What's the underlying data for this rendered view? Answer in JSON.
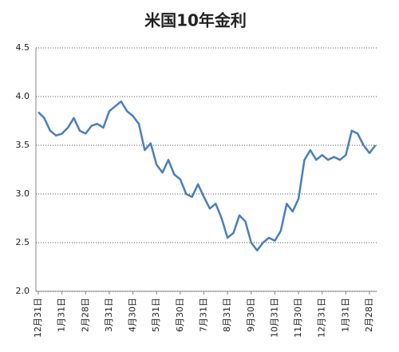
{
  "chart_data": {
    "type": "line",
    "title": "米国10年金利",
    "categories": [
      "12月31日",
      null,
      null,
      null,
      "1月31日",
      null,
      null,
      null,
      "2月28日",
      null,
      null,
      null,
      "3月31日",
      null,
      null,
      null,
      "4月30日",
      null,
      null,
      null,
      "5月31日",
      null,
      null,
      null,
      "6月30日",
      null,
      null,
      null,
      "7月31日",
      null,
      null,
      null,
      "8月31日",
      null,
      null,
      null,
      "9月30日",
      null,
      null,
      null,
      "10月31日",
      null,
      null,
      null,
      "11月30日",
      null,
      null,
      null,
      "12月31日",
      null,
      null,
      null,
      "1月31日",
      null,
      null,
      null,
      "2月28日",
      null
    ],
    "series": [
      {
        "name": "米国10年金利",
        "color": "#4a7ebb",
        "values": [
          3.84,
          3.78,
          3.65,
          3.6,
          3.62,
          3.68,
          3.78,
          3.65,
          3.62,
          3.7,
          3.72,
          3.68,
          3.85,
          3.9,
          3.95,
          3.85,
          3.8,
          3.72,
          3.45,
          3.52,
          3.3,
          3.22,
          3.35,
          3.2,
          3.15,
          3.0,
          2.97,
          3.1,
          2.97,
          2.85,
          2.9,
          2.75,
          2.55,
          2.6,
          2.78,
          2.72,
          2.5,
          2.42,
          2.5,
          2.55,
          2.52,
          2.62,
          2.9,
          2.82,
          2.95,
          3.35,
          3.45,
          3.35,
          3.4,
          3.35,
          3.38,
          3.35,
          3.4,
          3.65,
          3.62,
          3.5,
          3.42,
          3.5
        ]
      }
    ],
    "ylim": [
      2.0,
      4.5
    ],
    "yticks": [
      {
        "value": 2,
        "label": "2.0"
      },
      {
        "value": 2.5,
        "label": "2.5"
      },
      {
        "value": 3,
        "label": "3.0"
      },
      {
        "value": 3.5,
        "label": "3.5"
      },
      {
        "value": 4,
        "label": "4.0"
      },
      {
        "value": 4.5,
        "label": "4.5"
      }
    ],
    "grid": true
  }
}
